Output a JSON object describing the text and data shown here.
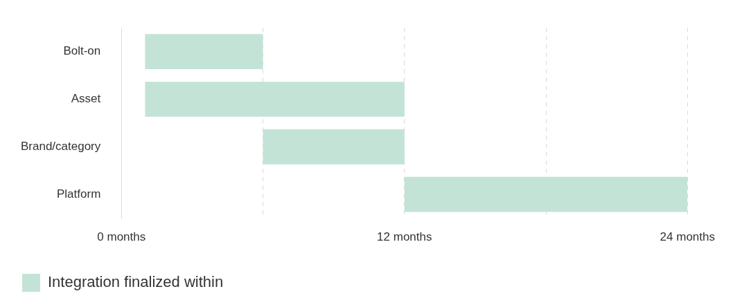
{
  "chart_data": {
    "type": "bar",
    "orientation": "horizontal",
    "categories": [
      "Bolt-on",
      "Asset",
      "Brand/category",
      "Platform"
    ],
    "series": [
      {
        "name": "Integration finalized within",
        "color": "#c3e3d6",
        "values": [
          5,
          11,
          6,
          12
        ],
        "base": [
          1,
          1,
          6,
          12
        ]
      }
    ],
    "xlim": [
      0,
      24
    ],
    "xticks": [
      {
        "value": 0,
        "label": "0 months"
      },
      {
        "value": 6,
        "label": null
      },
      {
        "value": 12,
        "label": "12 months"
      },
      {
        "value": 18,
        "label": null
      },
      {
        "value": 24,
        "label": "24 months"
      }
    ],
    "grid": "x",
    "line_style": "dashed",
    "legend": "bottom left"
  }
}
